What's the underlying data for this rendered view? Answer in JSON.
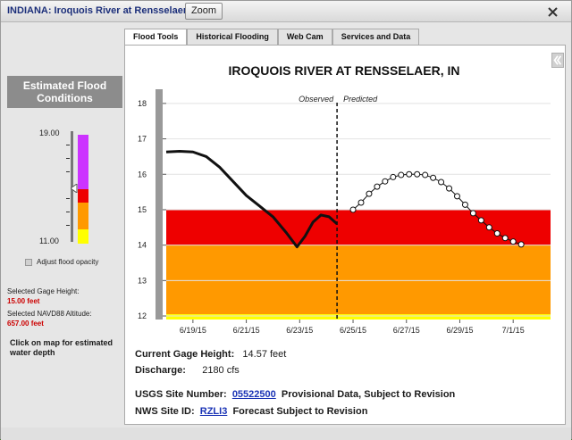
{
  "window": {
    "title": "INDIANA: Iroquois River at Rensselaer",
    "zoom_label": "Zoom"
  },
  "sidebar": {
    "heading": "Estimated Flood Conditions",
    "gauge_top_label": "19.00",
    "gauge_bottom_label": "11.00",
    "opacity_label": "Adjust flood opacity",
    "selected_height_label": "Selected Gage Height:",
    "selected_height_value": "15.00 feet",
    "selected_altitude_label": "Selected NAVD88 Altitude:",
    "selected_altitude_value": "657.00 feet",
    "click_note": "Click on map for estimated water depth",
    "colors": {
      "purple": "#cc33ff",
      "red": "#ee0000",
      "orange": "#ff9900",
      "yellow": "#ffff00"
    }
  },
  "tabs": [
    "Flood Tools",
    "Historical Flooding",
    "Web Cam",
    "Services and Data"
  ],
  "chart_data": {
    "type": "line",
    "title": "IROQUOIS RIVER AT RENSSELAER, IN",
    "ylim": [
      11.9,
      18.4
    ],
    "yticks": [
      12,
      13,
      14,
      15,
      16,
      17,
      18
    ],
    "xlim": [
      0,
      14.4
    ],
    "xticks": [
      {
        "x": 1,
        "label": "6/19/15"
      },
      {
        "x": 3,
        "label": "6/21/15"
      },
      {
        "x": 5,
        "label": "6/23/15"
      },
      {
        "x": 7,
        "label": "6/25/15"
      },
      {
        "x": 9,
        "label": "6/27/15"
      },
      {
        "x": 11,
        "label": "6/29/15"
      },
      {
        "x": 13,
        "label": "7/1/15"
      }
    ],
    "divider_x": 6.4,
    "observed_label": "Observed",
    "predicted_label": "Predicted",
    "bands": [
      {
        "from": 11.9,
        "to": 12.05,
        "color": "#ffff00"
      },
      {
        "from": 12.05,
        "to": 14.0,
        "color": "#ff9900"
      },
      {
        "from": 14.0,
        "to": 15.0,
        "color": "#ee0000"
      }
    ],
    "series": [
      {
        "points": [
          [
            0,
            16.63
          ],
          [
            0.5,
            16.65
          ],
          [
            1,
            16.63
          ],
          [
            1.5,
            16.5
          ],
          [
            2,
            16.2
          ],
          [
            2.5,
            15.8
          ],
          [
            3,
            15.4
          ],
          [
            3.5,
            15.1
          ],
          [
            4,
            14.8
          ],
          [
            4.5,
            14.35
          ],
          [
            4.9,
            13.95
          ],
          [
            5.2,
            14.25
          ],
          [
            5.5,
            14.65
          ],
          [
            5.8,
            14.85
          ],
          [
            6.1,
            14.8
          ],
          [
            6.4,
            14.6
          ]
        ]
      },
      {
        "points": [
          [
            7,
            15.0
          ],
          [
            7.3,
            15.2
          ],
          [
            7.6,
            15.45
          ],
          [
            7.9,
            15.65
          ],
          [
            8.2,
            15.8
          ],
          [
            8.5,
            15.92
          ],
          [
            8.8,
            15.98
          ],
          [
            9.1,
            16.0
          ],
          [
            9.4,
            16.0
          ],
          [
            9.7,
            15.98
          ],
          [
            10,
            15.9
          ],
          [
            10.3,
            15.78
          ],
          [
            10.6,
            15.6
          ],
          [
            10.9,
            15.38
          ],
          [
            11.2,
            15.14
          ],
          [
            11.5,
            14.9
          ],
          [
            11.8,
            14.7
          ],
          [
            12.1,
            14.5
          ],
          [
            12.4,
            14.33
          ],
          [
            12.7,
            14.2
          ],
          [
            13,
            14.1
          ],
          [
            13.3,
            14.02
          ]
        ]
      }
    ]
  },
  "info": {
    "gage_label": "Current Gage Height:",
    "gage_value": "14.57 feet",
    "discharge_label": "Discharge:",
    "discharge_value": "2180 cfs",
    "usgs_label": "USGS Site Number:",
    "usgs_value": "05522500",
    "usgs_note": "Provisional Data, Subject to Revision",
    "nws_label": "NWS Site ID:",
    "nws_value": "RZLI3",
    "nws_note": "Forecast Subject to Revision"
  }
}
